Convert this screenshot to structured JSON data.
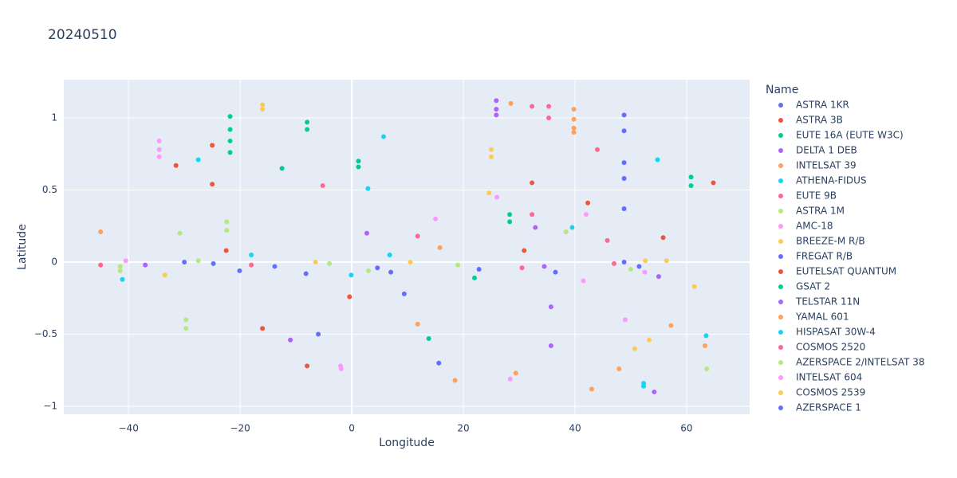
{
  "chart_data": {
    "type": "scatter",
    "title": "20240510",
    "x_label": "Longitude",
    "y_label": "Latitude",
    "legend_title": "Name",
    "xlim": [
      -51.6,
      71.3
    ],
    "ylim": [
      -1.055,
      1.265
    ],
    "xticks": [
      {
        "value": -40,
        "label": "−40"
      },
      {
        "value": -20,
        "label": "−20"
      },
      0,
      20,
      40,
      60
    ],
    "yticks": [
      {
        "value": -1,
        "label": "−1"
      },
      {
        "value": -0.5,
        "label": "−0.5"
      },
      0,
      0.5,
      1
    ],
    "grid": true,
    "series": [
      {
        "name": "ASTRA 1KR",
        "color": "#636efa",
        "x": [
          48.8,
          48.8,
          48.8,
          48.8,
          48.8,
          48.8
        ],
        "y": [
          1.02,
          0.91,
          0.69,
          0.58,
          0.37,
          0.0
        ]
      },
      {
        "name": "ASTRA 3B",
        "color": "#EF553B",
        "x": [
          -25,
          -25,
          -31.5,
          -22.5,
          30.9,
          55.8
        ],
        "y": [
          0.81,
          0.54,
          0.67,
          0.08,
          0.08,
          0.17
        ]
      },
      {
        "name": "EUTE 16A (EUTE W3C)",
        "color": "#00cc96",
        "x": [
          -21.8,
          -21.8,
          -21.8,
          -21.8,
          -12.5,
          1.2,
          1.2
        ],
        "y": [
          1.01,
          0.92,
          0.84,
          0.76,
          0.65,
          0.7,
          0.66
        ]
      },
      {
        "name": "DELTA 1 DEB",
        "color": "#ab63fa",
        "x": [
          25.9,
          25.9,
          25.9,
          2.7,
          32.9,
          35.7,
          35.7
        ],
        "y": [
          1.12,
          1.06,
          1.02,
          0.2,
          0.24,
          -0.31,
          -0.58
        ]
      },
      {
        "name": "INTELSAT 39",
        "color": "#FFA15A",
        "x": [
          -45,
          28.5,
          39.8,
          39.8,
          39.8,
          39.8,
          15.8,
          11.8
        ],
        "y": [
          0.21,
          1.1,
          1.06,
          0.99,
          0.93,
          0.9,
          0.1,
          -0.43
        ]
      },
      {
        "name": "ATHENA-FIDUS",
        "color": "#19d3f3",
        "x": [
          -27.5,
          5.7,
          2.9,
          39.5,
          54.8,
          52.3
        ],
        "y": [
          0.71,
          0.87,
          0.51,
          0.24,
          0.71,
          -0.84
        ]
      },
      {
        "name": "EUTE 9B",
        "color": "#FF6692",
        "x": [
          32.3,
          35.3,
          35.3,
          44,
          45.8,
          32.3,
          11.8
        ],
        "y": [
          1.08,
          1.08,
          1.0,
          0.78,
          0.15,
          0.33,
          0.18
        ]
      },
      {
        "name": "ASTRA 1M",
        "color": "#B6E880",
        "x": [
          -22.4,
          -22.4,
          -30.8,
          -29.7,
          -29.7,
          38.4,
          -41.5,
          63.6
        ],
        "y": [
          0.28,
          0.22,
          0.2,
          -0.4,
          -0.46,
          0.21,
          -0.06,
          -0.74
        ]
      },
      {
        "name": "AMC-18",
        "color": "#FF97FF",
        "x": [
          -34.5,
          -34.5,
          -34.5,
          26,
          15,
          42,
          -2,
          49
        ],
        "y": [
          0.84,
          0.78,
          0.73,
          0.45,
          0.3,
          0.33,
          -0.72,
          -0.4
        ]
      },
      {
        "name": "BREEZE-M R/B",
        "color": "#FECB52",
        "x": [
          -16,
          -16,
          25,
          25,
          24.6,
          -33.5,
          61.4
        ],
        "y": [
          1.09,
          1.06,
          0.78,
          0.73,
          0.48,
          -0.09,
          -0.17
        ]
      },
      {
        "name": "FREGAT R/B",
        "color": "#636efa",
        "x": [
          -8.2,
          -6,
          15.6,
          9.4,
          -30
        ],
        "y": [
          -0.08,
          -0.5,
          -0.7,
          -0.22,
          0.0
        ]
      },
      {
        "name": "EUTELSAT QUANTUM",
        "color": "#EF553B",
        "x": [
          42.3,
          32.3,
          64.8,
          -8,
          -16,
          -0.4
        ],
        "y": [
          0.41,
          0.55,
          0.55,
          -0.72,
          -0.46,
          -0.24
        ]
      },
      {
        "name": "GSAT 2",
        "color": "#00cc96",
        "x": [
          -8,
          -8,
          28.3,
          28.3,
          60.8,
          60.8,
          13.8,
          22
        ],
        "y": [
          0.97,
          0.92,
          0.33,
          0.28,
          0.59,
          0.53,
          -0.53,
          -0.11
        ]
      },
      {
        "name": "TELSTAR 11N",
        "color": "#ab63fa",
        "x": [
          -11,
          54.2,
          55,
          34.5,
          -37
        ],
        "y": [
          -0.54,
          -0.9,
          -0.1,
          -0.03,
          -0.02
        ]
      },
      {
        "name": "YAMAL 601",
        "color": "#FFA15A",
        "x": [
          18.5,
          29.4,
          47.9,
          57.2,
          63.3,
          43
        ],
        "y": [
          -0.82,
          -0.77,
          -0.74,
          -0.44,
          -0.58,
          -0.88
        ]
      },
      {
        "name": "HISPASAT 30W-4",
        "color": "#19d3f3",
        "x": [
          -41.1,
          52.3,
          63.5,
          -0.1,
          -18,
          6.8
        ],
        "y": [
          -0.12,
          -0.86,
          -0.51,
          -0.09,
          0.05,
          0.05
        ]
      },
      {
        "name": "COSMOS 2520",
        "color": "#FF6692",
        "x": [
          -5.2,
          -45,
          -18,
          30.5,
          47
        ],
        "y": [
          0.53,
          -0.02,
          -0.02,
          -0.04,
          -0.01
        ]
      },
      {
        "name": "AZERSPACE 2/INTELSAT 38",
        "color": "#B6E880",
        "x": [
          -41.5,
          -27.5,
          -4,
          3,
          19,
          50
        ],
        "y": [
          -0.03,
          0.01,
          -0.01,
          -0.06,
          -0.02,
          -0.05
        ]
      },
      {
        "name": "INTELSAT 604",
        "color": "#FF97FF",
        "x": [
          -1.9,
          28.4,
          41.5,
          -40.5,
          52.5
        ],
        "y": [
          -0.74,
          -0.81,
          -0.13,
          0.01,
          -0.07
        ]
      },
      {
        "name": "COSMOS 2539",
        "color": "#FECB52",
        "x": [
          50.7,
          53.3,
          -6.5,
          10.5,
          52.6,
          56.4
        ],
        "y": [
          -0.6,
          -0.54,
          0.0,
          0.0,
          0.01,
          0.01
        ]
      },
      {
        "name": "AZERSPACE 1",
        "color": "#636efa",
        "x": [
          -20.1,
          -24.8,
          -13.8,
          4.6,
          7,
          22.8,
          36.5,
          51.5
        ],
        "y": [
          -0.06,
          -0.01,
          -0.03,
          -0.04,
          -0.07,
          -0.05,
          -0.07,
          -0.03
        ]
      }
    ]
  }
}
